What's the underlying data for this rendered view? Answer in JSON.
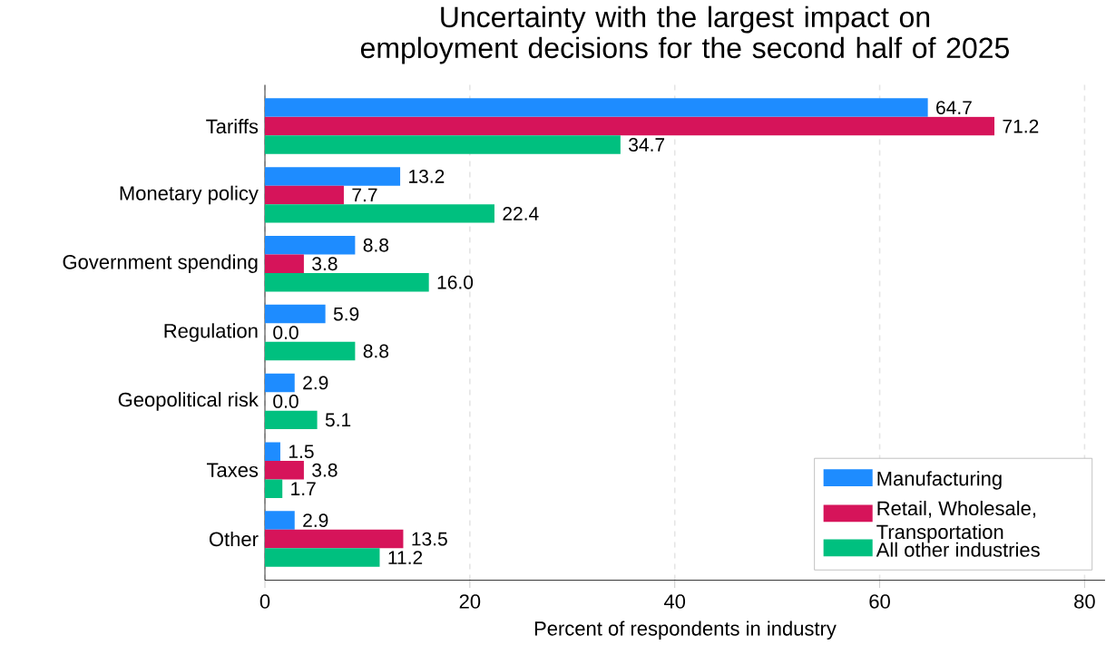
{
  "chart_data": {
    "type": "bar",
    "orientation": "horizontal",
    "title": "Uncertainty with the largest impact on employment decisions for the second half of 2025",
    "xlabel": "Percent of respondents in industry",
    "categories": [
      "Tariffs",
      "Monetary policy",
      "Government spending",
      "Regulation",
      "Geopolitical risk",
      "Taxes",
      "Other"
    ],
    "series": [
      {
        "name": "Manufacturing",
        "color": "#1e8cff",
        "values": [
          64.7,
          13.2,
          8.8,
          5.9,
          2.9,
          1.5,
          2.9
        ],
        "value_labels": [
          "64.7",
          "13.2",
          "8.8",
          "5.9",
          "2.9",
          "1.5",
          "2.9"
        ]
      },
      {
        "name": "Retail, Wholesale, Transportation",
        "color": "#d6145a",
        "values": [
          71.2,
          7.7,
          3.8,
          0.0,
          0.0,
          3.8,
          13.5
        ],
        "value_labels": [
          "71.2",
          "7.7",
          "3.8",
          "0.0",
          "0.0",
          "3.8",
          "13.5"
        ]
      },
      {
        "name": "All other industries",
        "color": "#00c07f",
        "values": [
          34.7,
          22.4,
          16.0,
          8.8,
          5.1,
          1.7,
          11.2
        ],
        "value_labels": [
          "34.7",
          "22.4",
          "16.0",
          "8.8",
          "5.1",
          "1.7",
          "11.2"
        ]
      }
    ],
    "xlim": [
      0,
      82
    ],
    "xticks": [
      0,
      20,
      40,
      60,
      80
    ],
    "grid": "x",
    "legend": "bottom right",
    "data_labels": true
  }
}
